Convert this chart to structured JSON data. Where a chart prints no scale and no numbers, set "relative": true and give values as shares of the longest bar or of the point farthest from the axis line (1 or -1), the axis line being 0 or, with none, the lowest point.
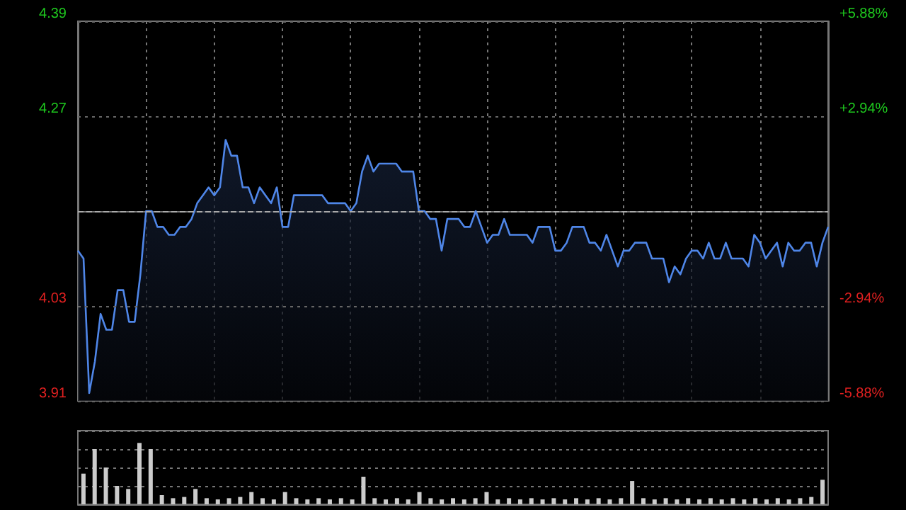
{
  "chart_data": [
    {
      "type": "area",
      "categories": [
        null,
        null,
        null,
        null,
        null,
        null,
        null,
        null,
        null,
        null,
        null,
        null,
        null,
        null,
        null,
        null,
        null,
        null,
        null,
        null,
        null,
        null,
        null,
        null,
        null,
        null,
        null,
        null,
        null,
        null,
        null,
        null,
        null,
        null,
        null,
        null,
        null,
        null,
        null,
        null,
        null,
        null,
        null,
        null,
        null,
        null,
        null,
        null,
        null,
        null,
        null,
        null,
        null,
        null,
        null,
        null,
        null,
        null,
        null,
        null,
        null,
        null,
        null,
        null,
        null,
        null,
        null,
        null,
        null,
        null,
        null,
        null,
        null,
        null,
        null,
        null,
        null,
        null,
        null,
        null,
        null,
        null,
        null,
        null,
        null,
        null,
        null,
        null,
        null,
        null,
        null,
        null,
        null,
        null,
        null,
        null,
        null,
        null,
        null,
        null,
        null,
        null,
        null,
        null,
        null,
        null,
        null,
        null,
        null,
        null,
        null,
        null,
        null,
        null,
        null,
        null,
        null,
        null,
        null,
        null,
        null,
        null,
        null,
        null,
        null,
        null,
        null,
        null,
        null,
        null,
        null,
        null,
        null
      ],
      "series": [
        {
          "color": "#4f86e8",
          "values": [
            4.1,
            4.09,
            3.92,
            3.96,
            4.02,
            4.0,
            4.0,
            4.05,
            4.05,
            4.01,
            4.01,
            4.07,
            4.15,
            4.15,
            4.13,
            4.13,
            4.12,
            4.12,
            4.13,
            4.13,
            4.14,
            4.16,
            4.17,
            4.18,
            4.17,
            4.18,
            4.24,
            4.22,
            4.22,
            4.18,
            4.18,
            4.16,
            4.18,
            4.17,
            4.16,
            4.18,
            4.13,
            4.13,
            4.17,
            4.17,
            4.17,
            4.17,
            4.17,
            4.17,
            4.16,
            4.16,
            4.16,
            4.16,
            4.15,
            4.16,
            4.2,
            4.22,
            4.2,
            4.21,
            4.21,
            4.21,
            4.21,
            4.2,
            4.2,
            4.2,
            4.15,
            4.15,
            4.14,
            4.14,
            4.1,
            4.14,
            4.14,
            4.14,
            4.13,
            4.13,
            4.15,
            4.13,
            4.11,
            4.12,
            4.12,
            4.14,
            4.12,
            4.12,
            4.12,
            4.12,
            4.11,
            4.13,
            4.13,
            4.13,
            4.1,
            4.1,
            4.11,
            4.13,
            4.13,
            4.13,
            4.11,
            4.11,
            4.1,
            4.12,
            4.1,
            4.08,
            4.1,
            4.1,
            4.11,
            4.11,
            4.11,
            4.09,
            4.09,
            4.09,
            4.06,
            4.08,
            4.07,
            4.09,
            4.1,
            4.1,
            4.09,
            4.11,
            4.09,
            4.09,
            4.11,
            4.09,
            4.09,
            4.09,
            4.08,
            4.12,
            4.11,
            4.09,
            4.1,
            4.11,
            4.08,
            4.11,
            4.1,
            4.1,
            4.11,
            4.11,
            4.08,
            4.11,
            4.13
          ]
        }
      ],
      "ylim": [
        3.91,
        4.39
      ],
      "yticks": [
        3.91,
        4.03,
        4.27,
        4.39
      ],
      "y2lim": [
        -5.88,
        5.88
      ],
      "y2ticks": [
        {
          "value": -5.88,
          "label": "-5.88%"
        },
        {
          "value": -2.94,
          "label": "-2.94%"
        },
        {
          "value": 2.94,
          "label": "+2.94%"
        },
        {
          "value": 5.88,
          "label": "+5.88%"
        }
      ],
      "ref_lines": [
        {
          "axis": "y",
          "value": 4.15,
          "color": "#aaaaaa",
          "line_style": "dashed"
        }
      ],
      "grid": true,
      "tick_labels": "y"
    },
    {
      "type": "bar",
      "relative": true,
      "categories": [
        null,
        null,
        null,
        null,
        null,
        null,
        null,
        null,
        null,
        null,
        null,
        null,
        null,
        null,
        null,
        null,
        null,
        null,
        null,
        null,
        null,
        null,
        null,
        null,
        null,
        null,
        null,
        null,
        null,
        null,
        null,
        null,
        null,
        null,
        null,
        null,
        null,
        null,
        null,
        null,
        null,
        null,
        null,
        null,
        null,
        null,
        null,
        null,
        null,
        null,
        null,
        null,
        null,
        null,
        null,
        null,
        null,
        null,
        null,
        null,
        null,
        null,
        null,
        null,
        null,
        null,
        null
      ],
      "series": [
        {
          "color": "#cccccc",
          "values": [
            0.5,
            0.9,
            0.6,
            0.3,
            0.25,
            1,
            0.9,
            0.15,
            0.1,
            0.12,
            0.25,
            0.1,
            0.08,
            0.1,
            0.12,
            0.2,
            0.1,
            0.08,
            0.2,
            0.1,
            0.08,
            0.1,
            0.08,
            0.1,
            0.08,
            0.45,
            0.1,
            0.08,
            0.1,
            0.08,
            0.2,
            0.1,
            0.08,
            0.1,
            0.08,
            0.1,
            0.2,
            0.08,
            0.1,
            0.08,
            0.1,
            0.08,
            0.1,
            0.08,
            0.1,
            0.08,
            0.1,
            0.08,
            0.1,
            0.38,
            0.1,
            0.08,
            0.1,
            0.08,
            0.1,
            0.08,
            0.1,
            0.08,
            0.1,
            0.08,
            0.1,
            0.08,
            0.1,
            0.08,
            0.1,
            0.12,
            0.4
          ]
        }
      ],
      "grid": "y",
      "tick_labels": false
    }
  ]
}
